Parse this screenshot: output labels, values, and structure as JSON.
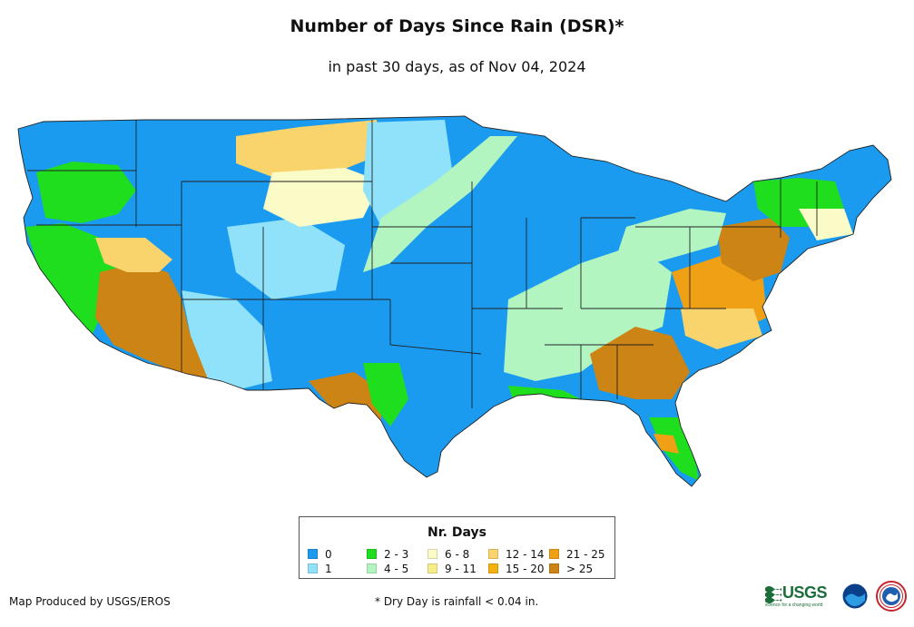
{
  "title": "Number of Days Since Rain (DSR)*",
  "subtitle": "in past 30 days, as of Nov 04, 2024",
  "legend": {
    "title": "Nr. Days",
    "items": [
      {
        "label": "0",
        "color": "#1a9bf0"
      },
      {
        "label": "1",
        "color": "#8fe2fa"
      },
      {
        "label": "2 - 3",
        "color": "#1ede1e"
      },
      {
        "label": "4 - 5",
        "color": "#b3f5c1"
      },
      {
        "label": "6 - 8",
        "color": "#fbfbc8"
      },
      {
        "label": "9 - 11",
        "color": "#f7ec8a"
      },
      {
        "label": "12 - 14",
        "color": "#f9d36b"
      },
      {
        "label": "15 - 20",
        "color": "#f5b20e"
      },
      {
        "label": "21 - 25",
        "color": "#f0a014"
      },
      {
        "label": "> 25",
        "color": "#cc8414"
      }
    ]
  },
  "footer": {
    "credit": "Map Produced by USGS/EROS",
    "footnote": "* Dry Day is rainfall < 0.04 in.",
    "usgs_logo_text": "USGS",
    "usgs_tagline": "science for a changing world"
  },
  "map": {
    "region": "Contiguous United States",
    "boundaries_color": "#222222"
  }
}
